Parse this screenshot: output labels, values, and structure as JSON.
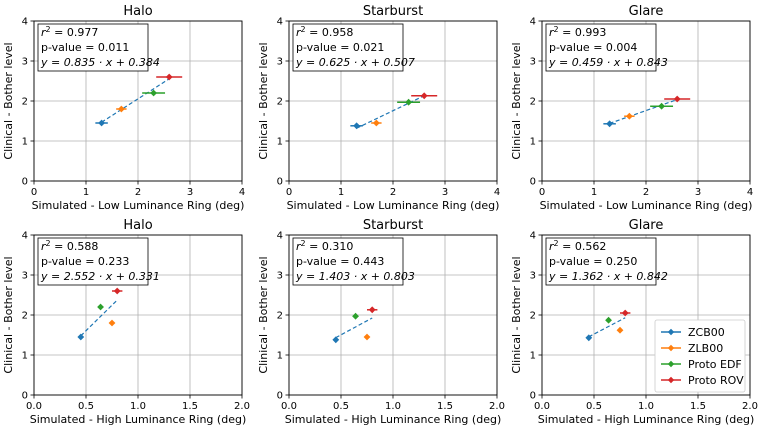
{
  "chart_data": [
    {
      "type": "scatter",
      "title": "Halo",
      "xlabel": "Simulated - Low Luminance Ring (deg)",
      "ylabel": "Clinical - Bother level",
      "xlim": [
        0,
        4
      ],
      "ylim": [
        0,
        4
      ],
      "xticks": [
        "0",
        "1",
        "2",
        "3",
        "4"
      ],
      "yticks": [
        "0",
        "1",
        "2",
        "3",
        "4"
      ],
      "stats": {
        "r2_prefix": "r",
        "r2_sup": "2",
        "r2_value": " = 0.977",
        "pvalue": "p-value = 0.011",
        "fit_text": "y = 0.835 · x + 0.384"
      },
      "fit": {
        "slope": 0.835,
        "intercept": 0.384,
        "x_range": [
          1.3,
          2.6
        ]
      },
      "points": [
        {
          "series": "ZCB00",
          "x": 1.3,
          "y": 1.45,
          "xerr": 0.12
        },
        {
          "series": "ZLB00",
          "x": 1.68,
          "y": 1.8,
          "xerr": 0.1
        },
        {
          "series": "Proto EDF",
          "x": 2.3,
          "y": 2.2,
          "xerr": 0.22
        },
        {
          "series": "Proto ROV",
          "x": 2.6,
          "y": 2.6,
          "xerr": 0.25
        }
      ]
    },
    {
      "type": "scatter",
      "title": "Starburst",
      "xlabel": "Simulated - Low Luminance Ring (deg)",
      "ylabel": "Clinical - Bother level",
      "xlim": [
        0,
        4
      ],
      "ylim": [
        0,
        4
      ],
      "xticks": [
        "0",
        "1",
        "2",
        "3",
        "4"
      ],
      "yticks": [
        "0",
        "1",
        "2",
        "3",
        "4"
      ],
      "stats": {
        "r2_prefix": "r",
        "r2_sup": "2",
        "r2_value": " = 0.958",
        "pvalue": "p-value = 0.021",
        "fit_text": "y = 0.625 · x + 0.507"
      },
      "fit": {
        "slope": 0.625,
        "intercept": 0.507,
        "x_range": [
          1.3,
          2.6
        ]
      },
      "points": [
        {
          "series": "ZCB00",
          "x": 1.3,
          "y": 1.38,
          "xerr": 0.12
        },
        {
          "series": "ZLB00",
          "x": 1.68,
          "y": 1.45,
          "xerr": 0.1
        },
        {
          "series": "Proto EDF",
          "x": 2.3,
          "y": 1.97,
          "xerr": 0.22
        },
        {
          "series": "Proto ROV",
          "x": 2.6,
          "y": 2.13,
          "xerr": 0.25
        }
      ]
    },
    {
      "type": "scatter",
      "title": "Glare",
      "xlabel": "Simulated - Low Luminance Ring (deg)",
      "ylabel": "Clinical - Bother level",
      "xlim": [
        0,
        4
      ],
      "ylim": [
        0,
        4
      ],
      "xticks": [
        "0",
        "1",
        "2",
        "3",
        "4"
      ],
      "yticks": [
        "0",
        "1",
        "2",
        "3",
        "4"
      ],
      "stats": {
        "r2_prefix": "r",
        "r2_sup": "2",
        "r2_value": " = 0.993",
        "pvalue": "p-value = 0.004",
        "fit_text": "y = 0.459 · x + 0.843"
      },
      "fit": {
        "slope": 0.459,
        "intercept": 0.843,
        "x_range": [
          1.3,
          2.6
        ]
      },
      "points": [
        {
          "series": "ZCB00",
          "x": 1.3,
          "y": 1.43,
          "xerr": 0.12
        },
        {
          "series": "ZLB00",
          "x": 1.68,
          "y": 1.62,
          "xerr": 0.1
        },
        {
          "series": "Proto EDF",
          "x": 2.3,
          "y": 1.87,
          "xerr": 0.22
        },
        {
          "series": "Proto ROV",
          "x": 2.6,
          "y": 2.05,
          "xerr": 0.25
        }
      ]
    },
    {
      "type": "scatter",
      "title": "Halo",
      "xlabel": "Simulated - High Luminance Ring (deg)",
      "ylabel": "Clinical - Bother level",
      "xlim": [
        0,
        2
      ],
      "ylim": [
        0,
        4
      ],
      "xticks": [
        "0.0",
        "0.5",
        "1.0",
        "1.5",
        "2.0"
      ],
      "yticks": [
        "0",
        "1",
        "2",
        "3",
        "4"
      ],
      "stats": {
        "r2_prefix": "r",
        "r2_sup": "2",
        "r2_value": " = 0.588",
        "pvalue": "p-value = 0.233",
        "fit_text": "y = 2.552 · x + 0.331"
      },
      "fit": {
        "slope": 2.552,
        "intercept": 0.331,
        "x_range": [
          0.45,
          0.8
        ]
      },
      "points": [
        {
          "series": "ZCB00",
          "x": 0.45,
          "y": 1.45,
          "xerr": 0.02
        },
        {
          "series": "ZLB00",
          "x": 0.75,
          "y": 1.8,
          "xerr": 0.02
        },
        {
          "series": "Proto EDF",
          "x": 0.64,
          "y": 2.2,
          "xerr": 0.02
        },
        {
          "series": "Proto ROV",
          "x": 0.8,
          "y": 2.6,
          "xerr": 0.05
        }
      ]
    },
    {
      "type": "scatter",
      "title": "Starburst",
      "xlabel": "Simulated - High Luminance Ring (deg)",
      "ylabel": "Clinical - Bother level",
      "xlim": [
        0,
        2
      ],
      "ylim": [
        0,
        4
      ],
      "xticks": [
        "0.0",
        "0.5",
        "1.0",
        "1.5",
        "2.0"
      ],
      "yticks": [
        "0",
        "1",
        "2",
        "3",
        "4"
      ],
      "stats": {
        "r2_prefix": "r",
        "r2_sup": "2",
        "r2_value": " = 0.310",
        "pvalue": "p-value = 0.443",
        "fit_text": "y = 1.403 · x + 0.803"
      },
      "fit": {
        "slope": 1.403,
        "intercept": 0.803,
        "x_range": [
          0.45,
          0.8
        ]
      },
      "points": [
        {
          "series": "ZCB00",
          "x": 0.45,
          "y": 1.38,
          "xerr": 0.02
        },
        {
          "series": "ZLB00",
          "x": 0.75,
          "y": 1.45,
          "xerr": 0.02
        },
        {
          "series": "Proto EDF",
          "x": 0.64,
          "y": 1.97,
          "xerr": 0.02
        },
        {
          "series": "Proto ROV",
          "x": 0.8,
          "y": 2.13,
          "xerr": 0.05
        }
      ]
    },
    {
      "type": "scatter",
      "title": "Glare",
      "xlabel": "Simulated - High Luminance Ring (deg)",
      "ylabel": "Clinical - Bother level",
      "xlim": [
        0,
        2
      ],
      "ylim": [
        0,
        4
      ],
      "xticks": [
        "0.0",
        "0.5",
        "1.0",
        "1.5",
        "2.0"
      ],
      "yticks": [
        "0",
        "1",
        "2",
        "3",
        "4"
      ],
      "stats": {
        "r2_prefix": "r",
        "r2_sup": "2",
        "r2_value": " = 0.562",
        "pvalue": "p-value = 0.250",
        "fit_text": "y = 1.362 · x + 0.842"
      },
      "fit": {
        "slope": 1.362,
        "intercept": 0.842,
        "x_range": [
          0.45,
          0.8
        ]
      },
      "points": [
        {
          "series": "ZCB00",
          "x": 0.45,
          "y": 1.43,
          "xerr": 0.02
        },
        {
          "series": "ZLB00",
          "x": 0.75,
          "y": 1.62,
          "xerr": 0.02
        },
        {
          "series": "Proto EDF",
          "x": 0.64,
          "y": 1.87,
          "xerr": 0.02
        },
        {
          "series": "Proto ROV",
          "x": 0.8,
          "y": 2.05,
          "xerr": 0.05
        }
      ]
    }
  ],
  "legend": {
    "placement": "lower-right of last panel",
    "entries": [
      {
        "name": "ZCB00",
        "color": "#1f77b4"
      },
      {
        "name": "ZLB00",
        "color": "#ff7f0e"
      },
      {
        "name": "Proto EDF",
        "color": "#2ca02c"
      },
      {
        "name": "Proto ROV",
        "color": "#d62728"
      }
    ]
  },
  "colors": {
    "fit_line": "#1f77b4",
    "grid": "#b0b0b0"
  }
}
